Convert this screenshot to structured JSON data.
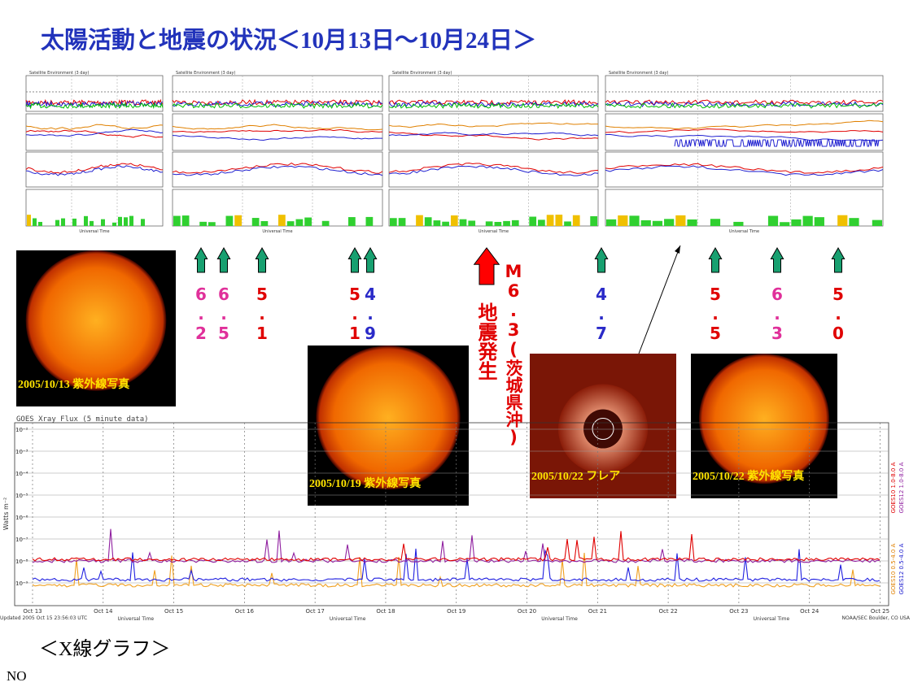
{
  "header": {
    "title": "太陽活動と地震の状況＜10月13日～10月24日＞"
  },
  "satellite_panel": {
    "title": "Satellite Environment (3 day)",
    "x_label": "Universal Time"
  },
  "quakes": [
    {
      "magnitude": "6.2",
      "color": "#e0309a"
    },
    {
      "magnitude": "6.5",
      "color": "#e0309a"
    },
    {
      "magnitude": "5.1",
      "color": "#e00000"
    },
    {
      "magnitude": "5.1",
      "color": "#e00000"
    },
    {
      "magnitude": "4.9",
      "color": "#2a2ac8"
    },
    {
      "magnitude": "4.7",
      "color": "#2a2ac8"
    },
    {
      "magnitude": "5.5",
      "color": "#e00000"
    },
    {
      "magnitude": "6.3",
      "color": "#e0309a"
    },
    {
      "magnitude": "5.0",
      "color": "#e00000"
    }
  ],
  "main_quake": {
    "magnitude": "M6.3(茨城県沖)",
    "label": "地震発生"
  },
  "photos": [
    {
      "caption": "2005/10/13 紫外線写真"
    },
    {
      "caption": "2005/10/19 紫外線写真"
    },
    {
      "caption": "2005/10/22 フレア"
    },
    {
      "caption": "2005/10/22 紫外線写真"
    }
  ],
  "xray_chart": {
    "title": "GOES Xray Flux (5 minute data)",
    "y_label": "Watts m⁻²",
    "x_label": "Universal Time",
    "yticks": [
      "10⁻²",
      "10⁻³",
      "10⁻⁴",
      "10⁻⁵",
      "10⁻⁶",
      "10⁻⁷",
      "10⁻⁸",
      "10⁻⁹"
    ],
    "xticks": [
      "Oct 13",
      "Oct 14",
      "Oct 15",
      "Oct 16",
      "Oct 17",
      "Oct 18",
      "Oct 19",
      "Oct 20",
      "Oct 21",
      "Oct 22",
      "Oct 23",
      "Oct 24",
      "Oct 25"
    ],
    "legend": [
      "GOES10 1.0-8.0 A",
      "GOES12 1.0-8.0 A",
      "GOES10 0.5-4.0 A",
      "GOES12 0.5-4.0 A"
    ],
    "footer": [
      "Updated 2005 Oct 15 23:56:03 UTC",
      "NOAA/SEC Boulder, CO USA"
    ]
  },
  "footer": {
    "caption": "＜X線グラフ＞",
    "note": "NO"
  }
}
